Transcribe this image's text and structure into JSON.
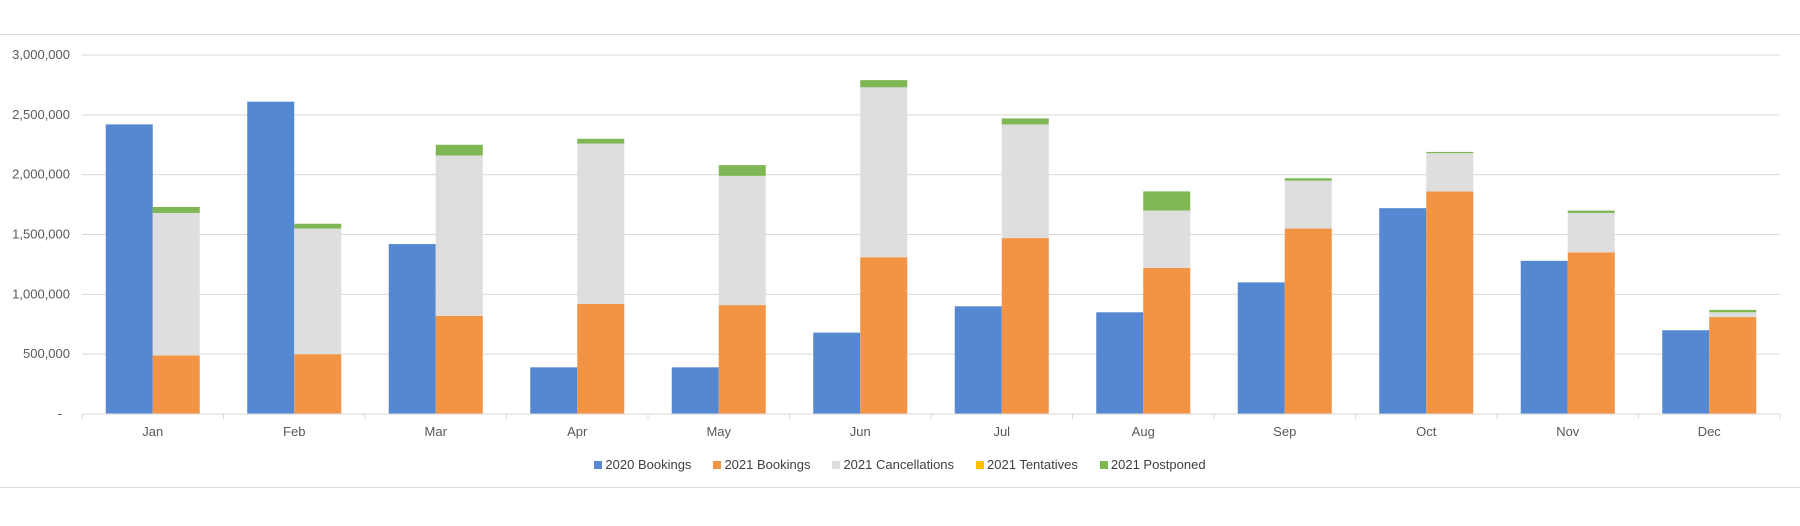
{
  "chart_data": {
    "type": "bar",
    "categories": [
      "Jan",
      "Feb",
      "Mar",
      "Apr",
      "May",
      "Jun",
      "Jul",
      "Aug",
      "Sep",
      "Oct",
      "Nov",
      "Dec"
    ],
    "ylim": [
      0,
      3000000
    ],
    "y_ticks": [
      0,
      500000,
      1000000,
      1500000,
      2000000,
      2500000,
      3000000
    ],
    "y_tick_labels": [
      "-",
      "500,000",
      "1,000,000",
      "1,500,000",
      "2,000,000",
      "2,500,000",
      "3,000,000"
    ],
    "grid": true,
    "legend_position": "bottom",
    "series": [
      {
        "name": "2020 Bookings",
        "color": "#5588d1",
        "stack": "2020",
        "values": [
          2420000,
          2610000,
          1420000,
          390000,
          390000,
          680000,
          900000,
          850000,
          1100000,
          1720000,
          1280000,
          700000
        ]
      },
      {
        "name": "2021 Bookings",
        "color": "#f29444",
        "stack": "2021",
        "values": [
          490000,
          500000,
          820000,
          920000,
          910000,
          1310000,
          1470000,
          1220000,
          1550000,
          1860000,
          1350000,
          810000
        ]
      },
      {
        "name": "2021 Cancellations",
        "color": "#dedede",
        "stack": "2021",
        "values": [
          1190000,
          1050000,
          1340000,
          1340000,
          1080000,
          1420000,
          950000,
          480000,
          400000,
          320000,
          330000,
          40000
        ]
      },
      {
        "name": "2021 Tentatives",
        "color": "#ffc000",
        "stack": "2021",
        "values": [
          0,
          0,
          0,
          0,
          0,
          0,
          0,
          0,
          0,
          0,
          0,
          0
        ]
      },
      {
        "name": "2021 Postponed",
        "color": "#7fb755",
        "stack": "2021",
        "values": [
          50000,
          40000,
          90000,
          40000,
          90000,
          60000,
          50000,
          160000,
          20000,
          10000,
          20000,
          20000
        ]
      }
    ]
  }
}
